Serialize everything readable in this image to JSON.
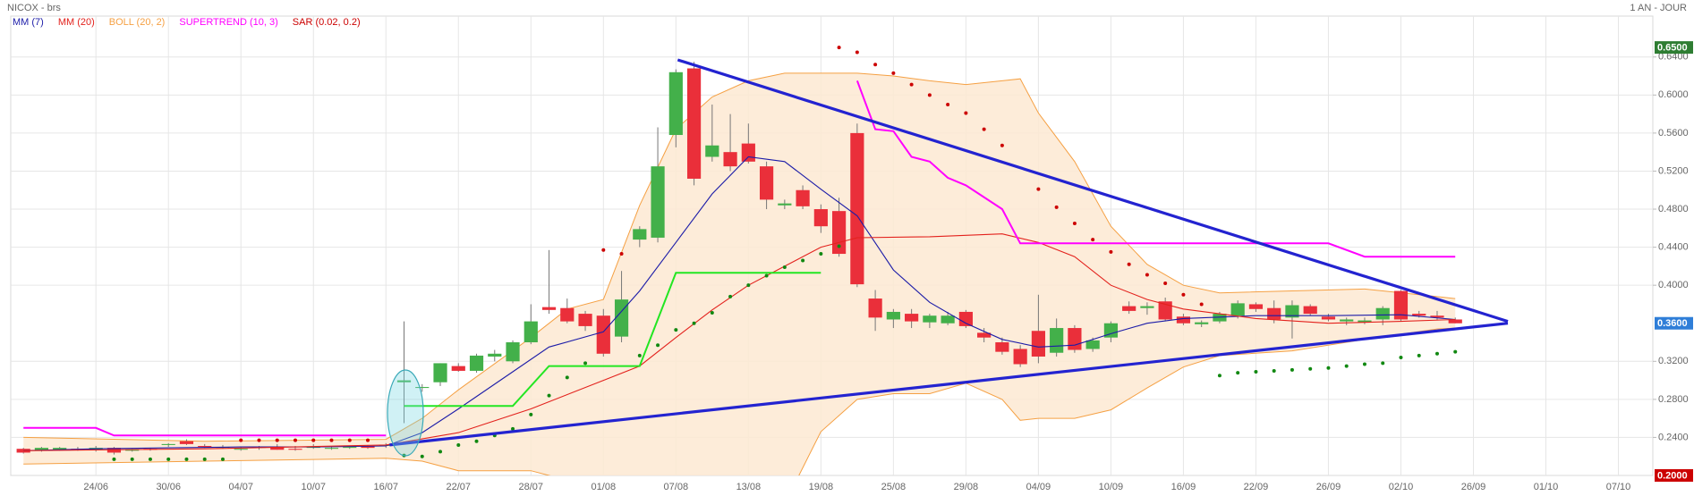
{
  "chart_data": {
    "type": "candlestick",
    "title": "NICOX - brs",
    "period": "1 AN - JOUR",
    "xlim": [
      -0.7,
      89.9
    ],
    "xticks": [
      {
        "value": 4,
        "label": "24/06"
      },
      {
        "value": 8,
        "label": "30/06"
      },
      {
        "value": 12,
        "label": "04/07"
      },
      {
        "value": 16,
        "label": "10/07"
      },
      {
        "value": 20,
        "label": "16/07"
      },
      {
        "value": 24,
        "label": "22/07"
      },
      {
        "value": 28,
        "label": "28/07"
      },
      {
        "value": 32,
        "label": "01/08"
      },
      {
        "value": 36,
        "label": "07/08"
      },
      {
        "value": 40,
        "label": "13/08"
      },
      {
        "value": 44,
        "label": "19/08"
      },
      {
        "value": 48,
        "label": "25/08"
      },
      {
        "value": 52,
        "label": "29/08"
      },
      {
        "value": 56,
        "label": "04/09"
      },
      {
        "value": 60,
        "label": "10/09"
      },
      {
        "value": 64,
        "label": "16/09"
      },
      {
        "value": 68,
        "label": "22/09"
      },
      {
        "value": 72,
        "label": "26/09"
      },
      {
        "value": 76,
        "label": "02/10"
      },
      {
        "value": 80,
        "label": "26/09"
      },
      {
        "value": 84,
        "label": "01/10"
      },
      {
        "value": 88,
        "label": "07/10"
      }
    ],
    "ylim": [
      0.2,
      0.683
    ],
    "yticks": [
      {
        "value": 0.24,
        "label": "0.2400"
      },
      {
        "value": 0.28,
        "label": "0.2800"
      },
      {
        "value": 0.32,
        "label": "0.3200"
      },
      {
        "value": 0.4,
        "label": "0.4000"
      },
      {
        "value": 0.44,
        "label": "0.4400"
      },
      {
        "value": 0.48,
        "label": "0.4800"
      },
      {
        "value": 0.52,
        "label": "0.5200"
      },
      {
        "value": 0.56,
        "label": "0.5600"
      },
      {
        "value": 0.6,
        "label": "0.6000"
      },
      {
        "value": 0.64,
        "label": "0.6400"
      }
    ],
    "grid": true,
    "price_markers": [
      {
        "value": 0.65,
        "label": "0.6500",
        "color": "#2e7d32"
      },
      {
        "value": 0.36,
        "label": "0.3600",
        "color": "#2f7ed8"
      },
      {
        "value": 0.2,
        "label": "0.2000",
        "color": "#cc0000"
      }
    ],
    "candles": {
      "up_color": "#43b04a",
      "down_color": "#ea2f3a",
      "wick_color": "#777777",
      "open": [
        0.228,
        0.226,
        0.227,
        0.228,
        0.227,
        0.229,
        0.226,
        0.228,
        0.232,
        0.236,
        0.231,
        0.229,
        0.228,
        0.229,
        0.23,
        0.228,
        0.229,
        0.228,
        0.229,
        0.231,
        0.232,
        0.298,
        0.292,
        0.298,
        0.315,
        0.31,
        0.325,
        0.32,
        0.34,
        0.377,
        0.376,
        0.37,
        0.368,
        0.346,
        0.448,
        0.45,
        0.558,
        0.628,
        0.535,
        0.54,
        0.549,
        0.525,
        0.484,
        0.5,
        0.48,
        0.478,
        0.56,
        0.386,
        0.364,
        0.37,
        0.361,
        0.36,
        0.372,
        0.35,
        0.34,
        0.333,
        0.352,
        0.329,
        0.355,
        0.333,
        0.345,
        0.378,
        0.376,
        0.383,
        0.367,
        0.359,
        0.362,
        0.368,
        0.38,
        0.376,
        0.366,
        0.378,
        0.367,
        0.362,
        0.361,
        0.364,
        0.394,
        0.37,
        0.368,
        0.364
      ],
      "high": [
        0.229,
        0.23,
        0.23,
        0.23,
        0.231,
        0.23,
        0.228,
        0.229,
        0.234,
        0.238,
        0.233,
        0.232,
        0.23,
        0.231,
        0.233,
        0.231,
        0.233,
        0.23,
        0.231,
        0.232,
        0.234,
        0.362,
        0.296,
        0.318,
        0.318,
        0.328,
        0.332,
        0.342,
        0.38,
        0.437,
        0.386,
        0.373,
        0.375,
        0.415,
        0.462,
        0.566,
        0.627,
        0.635,
        0.59,
        0.58,
        0.57,
        0.53,
        0.49,
        0.505,
        0.485,
        0.492,
        0.57,
        0.395,
        0.375,
        0.375,
        0.37,
        0.372,
        0.374,
        0.355,
        0.345,
        0.337,
        0.39,
        0.365,
        0.358,
        0.345,
        0.362,
        0.383,
        0.382,
        0.387,
        0.37,
        0.363,
        0.372,
        0.384,
        0.382,
        0.384,
        0.384,
        0.38,
        0.37,
        0.366,
        0.366,
        0.378,
        0.395,
        0.373,
        0.373,
        0.366
      ],
      "low": [
        0.223,
        0.225,
        0.226,
        0.226,
        0.225,
        0.222,
        0.225,
        0.226,
        0.23,
        0.232,
        0.229,
        0.228,
        0.226,
        0.227,
        0.227,
        0.226,
        0.228,
        0.227,
        0.228,
        0.228,
        0.229,
        0.255,
        0.288,
        0.294,
        0.309,
        0.308,
        0.32,
        0.318,
        0.338,
        0.37,
        0.36,
        0.352,
        0.325,
        0.34,
        0.44,
        0.445,
        0.545,
        0.505,
        0.53,
        0.52,
        0.528,
        0.48,
        0.48,
        0.48,
        0.455,
        0.43,
        0.398,
        0.352,
        0.355,
        0.355,
        0.355,
        0.358,
        0.355,
        0.34,
        0.327,
        0.314,
        0.318,
        0.325,
        0.329,
        0.33,
        0.34,
        0.37,
        0.369,
        0.362,
        0.358,
        0.356,
        0.36,
        0.365,
        0.372,
        0.36,
        0.344,
        0.368,
        0.362,
        0.358,
        0.359,
        0.358,
        0.362,
        0.366,
        0.363,
        0.36
      ],
      "close": [
        0.224,
        0.229,
        0.229,
        0.227,
        0.229,
        0.224,
        0.227,
        0.227,
        0.233,
        0.233,
        0.23,
        0.23,
        0.228,
        0.23,
        0.227,
        0.227,
        0.23,
        0.229,
        0.23,
        0.229,
        0.232,
        0.3,
        0.293,
        0.318,
        0.31,
        0.326,
        0.328,
        0.34,
        0.362,
        0.374,
        0.362,
        0.357,
        0.328,
        0.385,
        0.459,
        0.525,
        0.624,
        0.512,
        0.547,
        0.525,
        0.53,
        0.49,
        0.486,
        0.483,
        0.462,
        0.433,
        0.401,
        0.366,
        0.372,
        0.362,
        0.368,
        0.368,
        0.357,
        0.345,
        0.33,
        0.317,
        0.325,
        0.355,
        0.332,
        0.342,
        0.36,
        0.373,
        0.378,
        0.364,
        0.36,
        0.361,
        0.37,
        0.381,
        0.375,
        0.364,
        0.379,
        0.37,
        0.364,
        0.364,
        0.363,
        0.376,
        0.364,
        0.368,
        0.366,
        0.36
      ]
    },
    "series": [
      {
        "name": "MM (7)",
        "color": "#1c1ca8",
        "type": "line",
        "x": [
          0,
          4,
          8,
          12,
          16,
          20,
          22,
          24,
          27,
          29,
          32,
          34,
          36,
          38,
          40,
          42,
          44,
          46,
          48,
          50,
          52,
          54,
          56,
          58,
          60,
          62,
          64,
          68,
          72,
          76,
          79
        ],
        "values": [
          0.226,
          0.228,
          0.229,
          0.23,
          0.23,
          0.231,
          0.245,
          0.27,
          0.309,
          0.335,
          0.351,
          0.394,
          0.445,
          0.496,
          0.535,
          0.53,
          0.501,
          0.473,
          0.416,
          0.382,
          0.36,
          0.343,
          0.335,
          0.337,
          0.349,
          0.36,
          0.365,
          0.368,
          0.368,
          0.369,
          0.364
        ]
      },
      {
        "name": "MM (20)",
        "color": "#e3211c",
        "type": "line",
        "x": [
          0,
          10,
          20,
          24,
          28,
          32,
          34,
          36,
          38,
          40,
          42,
          44,
          46,
          50,
          54,
          56,
          58,
          60,
          62,
          64,
          68,
          72,
          76,
          79
        ],
        "values": [
          0.226,
          0.228,
          0.232,
          0.245,
          0.27,
          0.3,
          0.315,
          0.345,
          0.374,
          0.4,
          0.42,
          0.44,
          0.45,
          0.451,
          0.454,
          0.445,
          0.43,
          0.4,
          0.385,
          0.375,
          0.365,
          0.36,
          0.362,
          0.364
        ]
      },
      {
        "name": "BOLL (20, 2)",
        "color": "#f5a043",
        "fill": "#fde9d2",
        "type": "band",
        "x": [
          0,
          10,
          20,
          22,
          24,
          28,
          30,
          32,
          34,
          36,
          38,
          40,
          42,
          44,
          46,
          48,
          50,
          52,
          54,
          55,
          56,
          58,
          60,
          62,
          64,
          66,
          70,
          74,
          78,
          79
        ],
        "upper": [
          0.24,
          0.236,
          0.238,
          0.26,
          0.29,
          0.345,
          0.375,
          0.385,
          0.484,
          0.564,
          0.598,
          0.615,
          0.623,
          0.623,
          0.623,
          0.62,
          0.615,
          0.611,
          0.615,
          0.617,
          0.581,
          0.53,
          0.462,
          0.422,
          0.4,
          0.392,
          0.394,
          0.396,
          0.388,
          0.386
        ],
        "lower": [
          0.212,
          0.215,
          0.218,
          0.215,
          0.205,
          0.205,
          0.195,
          0.19,
          0.175,
          0.17,
          0.165,
          0.16,
          0.17,
          0.246,
          0.28,
          0.286,
          0.286,
          0.297,
          0.28,
          0.258,
          0.26,
          0.26,
          0.269,
          0.292,
          0.314,
          0.326,
          0.331,
          0.343,
          0.354,
          0.355
        ]
      },
      {
        "name": "SUPERTREND (10, 3)",
        "color": "#ff00ff",
        "type": "trend",
        "down": {
          "color": "#ff00ff",
          "x": [
            0,
            4,
            5,
            20,
            21,
            46,
            47,
            48,
            49,
            50,
            51,
            52,
            54,
            55,
            72,
            74,
            79
          ],
          "values": [
            0.25,
            0.25,
            0.242,
            0.242,
            null,
            0.615,
            0.564,
            0.562,
            0.535,
            0.53,
            0.513,
            0.505,
            0.48,
            0.444,
            0.444,
            0.43,
            0.43
          ]
        },
        "up": {
          "color": "#22e622",
          "x": [
            21,
            27,
            29,
            34,
            36,
            44
          ],
          "values": [
            0.273,
            0.273,
            0.315,
            0.315,
            0.413,
            0.413
          ]
        }
      },
      {
        "name": "SAR (0.02, 0.2)",
        "color": "#cc0000",
        "type": "dots",
        "above": {
          "color": "#cc0000",
          "x": [
            12,
            13,
            14,
            15,
            16,
            17,
            18,
            19,
            32,
            33,
            45,
            46,
            47,
            48,
            49,
            50,
            51,
            52,
            53,
            54,
            56,
            57,
            58,
            59,
            60,
            61,
            62,
            63,
            64,
            65
          ],
          "values": [
            0.237,
            0.237,
            0.237,
            0.237,
            0.237,
            0.237,
            0.237,
            0.237,
            0.437,
            0.433,
            0.65,
            0.645,
            0.632,
            0.623,
            0.611,
            0.6,
            0.59,
            0.581,
            0.564,
            0.547,
            0.501,
            0.482,
            0.465,
            0.448,
            0.435,
            0.422,
            0.411,
            0.402,
            0.39,
            0.38
          ]
        },
        "below": {
          "color": "#118811",
          "x": [
            5,
            6,
            7,
            8,
            9,
            10,
            11,
            21,
            22,
            23,
            24,
            25,
            26,
            27,
            28,
            29,
            30,
            31,
            34,
            35,
            36,
            37,
            38,
            39,
            40,
            41,
            42,
            43,
            44,
            45,
            66,
            67,
            68,
            69,
            70,
            71,
            72,
            73,
            74,
            75,
            76,
            77,
            78,
            79
          ],
          "values": [
            0.217,
            0.217,
            0.217,
            0.217,
            0.217,
            0.217,
            0.217,
            0.221,
            0.22,
            0.225,
            0.232,
            0.236,
            0.242,
            0.249,
            0.264,
            0.284,
            0.303,
            0.318,
            0.326,
            0.337,
            0.353,
            0.36,
            0.371,
            0.388,
            0.4,
            0.41,
            0.419,
            0.426,
            0.433,
            0.441,
            0.305,
            0.308,
            0.309,
            0.31,
            0.311,
            0.312,
            0.313,
            0.315,
            0.317,
            0.318,
            0.324,
            0.326,
            0.328,
            0.33
          ]
        }
      }
    ],
    "trendlines": {
      "color": "#2323d0",
      "lines": [
        {
          "x": [
            36.1,
            81.9
          ],
          "values": [
            0.637,
            0.362
          ]
        },
        {
          "x": [
            20.2,
            81.9
          ],
          "values": [
            0.232,
            0.36
          ]
        }
      ]
    }
  }
}
